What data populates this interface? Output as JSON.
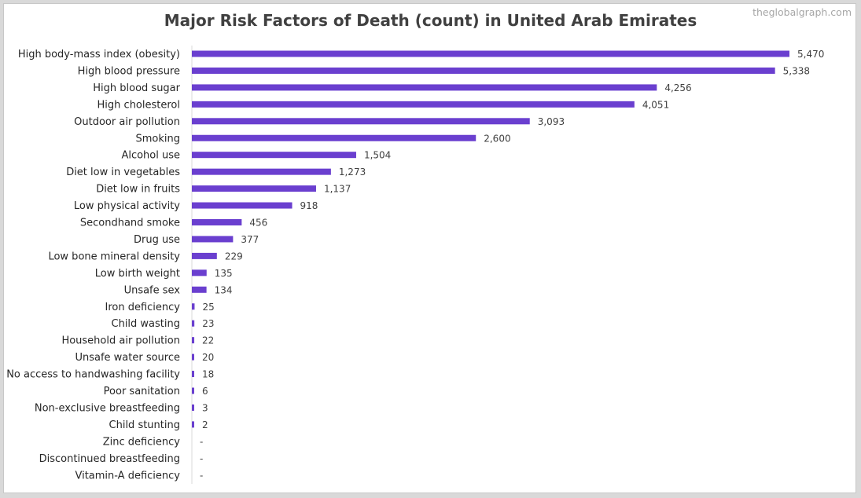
{
  "title": "Major Risk Factors of Death (count) in United Arab Emirates",
  "watermark": "theglobalgraph.com",
  "colors": {
    "bar": "#6a3fcf",
    "axis": "#d9d9d9"
  },
  "chart_data": {
    "type": "bar",
    "orientation": "horizontal",
    "title": "Major Risk Factors of Death (count) in United Arab Emirates",
    "xlabel": "",
    "ylabel": "",
    "xlim": [
      0,
      5470
    ],
    "grid": false,
    "legend": "none",
    "categories": [
      "High body-mass index (obesity)",
      "High blood pressure",
      "High blood sugar",
      "High cholesterol",
      "Outdoor air pollution",
      "Smoking",
      "Alcohol use",
      "Diet low in vegetables",
      "Diet low in fruits",
      "Low physical activity",
      "Secondhand smoke",
      "Drug use",
      "Low bone mineral density",
      "Low birth weight",
      "Unsafe sex",
      "Iron deficiency",
      "Child wasting",
      "Household air pollution",
      "Unsafe water source",
      "No access to handwashing facility",
      "Poor sanitation",
      "Non-exclusive breastfeeding",
      "Child stunting",
      "Zinc deficiency",
      "Discontinued breastfeeding",
      "Vitamin-A deficiency"
    ],
    "values": [
      5470,
      5338,
      4256,
      4051,
      3093,
      2600,
      1504,
      1273,
      1137,
      918,
      456,
      377,
      229,
      135,
      134,
      25,
      23,
      22,
      20,
      18,
      6,
      3,
      2,
      0,
      0,
      0
    ],
    "value_labels": [
      "5,470",
      "5,338",
      "4,256",
      "4,051",
      "3,093",
      "2,600",
      "1,504",
      "1,273",
      "1,137",
      "918",
      "456",
      "377",
      "229",
      "135",
      "134",
      "25",
      "23",
      "22",
      "20",
      "18",
      "6",
      "3",
      "2",
      "-",
      "-",
      "-"
    ]
  }
}
